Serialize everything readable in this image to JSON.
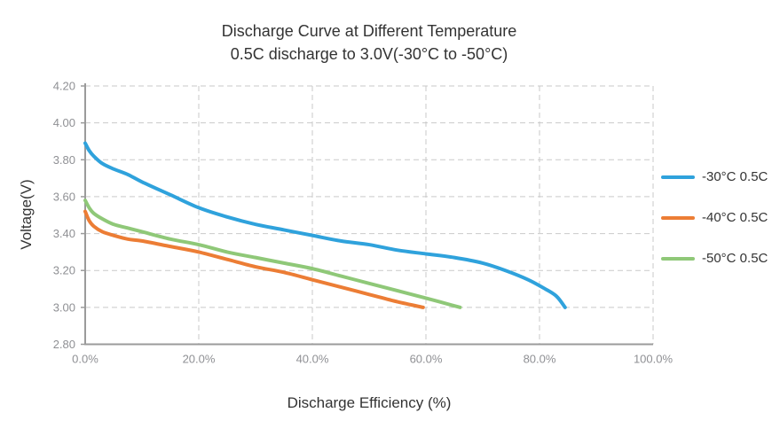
{
  "chart_data": {
    "type": "line",
    "title": "Discharge Curve at Different Temperature",
    "subtitle": "0.5C discharge to 3.0V(-30°C to -50°C)",
    "xlabel": "Discharge Efficiency (%)",
    "ylabel": "Voltage(V)",
    "xlim": [
      0,
      100
    ],
    "ylim": [
      2.8,
      4.2
    ],
    "grid": "dashed",
    "legend_position": "right",
    "axis_color": "#9b9b9b",
    "grid_color": "#c9c9c9",
    "tick_label_color": "#8f9094",
    "text_color": "#333333",
    "x_ticks": [
      {
        "value": 0,
        "label": "0.0%"
      },
      {
        "value": 20,
        "label": "20.0%"
      },
      {
        "value": 40,
        "label": "40.0%"
      },
      {
        "value": 60,
        "label": "60.0%"
      },
      {
        "value": 80,
        "label": "80.0%"
      },
      {
        "value": 100,
        "label": "100.0%"
      }
    ],
    "y_ticks": [
      {
        "value": 2.8,
        "label": "2.80"
      },
      {
        "value": 3.0,
        "label": "3.00"
      },
      {
        "value": 3.2,
        "label": "3.20"
      },
      {
        "value": 3.4,
        "label": "3.40"
      },
      {
        "value": 3.6,
        "label": "3.60"
      },
      {
        "value": 3.8,
        "label": "3.80"
      },
      {
        "value": 4.0,
        "label": "4.00"
      },
      {
        "value": 4.2,
        "label": "4.20"
      }
    ],
    "series": [
      {
        "name": "-30°C 0.5C",
        "color": "#2fa2dc",
        "points": [
          [
            0,
            3.89
          ],
          [
            0.7,
            3.85
          ],
          [
            1.5,
            3.82
          ],
          [
            3,
            3.78
          ],
          [
            5,
            3.75
          ],
          [
            7.5,
            3.72
          ],
          [
            10,
            3.68
          ],
          [
            15,
            3.61
          ],
          [
            20,
            3.54
          ],
          [
            25,
            3.49
          ],
          [
            30,
            3.45
          ],
          [
            35,
            3.42
          ],
          [
            40,
            3.39
          ],
          [
            45,
            3.36
          ],
          [
            50,
            3.34
          ],
          [
            55,
            3.31
          ],
          [
            60,
            3.29
          ],
          [
            65,
            3.27
          ],
          [
            70,
            3.24
          ],
          [
            74,
            3.2
          ],
          [
            78,
            3.15
          ],
          [
            81,
            3.1
          ],
          [
            83,
            3.06
          ],
          [
            84.5,
            3.0
          ]
        ]
      },
      {
        "name": "-40°C 0.5C",
        "color": "#ec7d35",
        "points": [
          [
            0,
            3.52
          ],
          [
            0.7,
            3.47
          ],
          [
            1.5,
            3.44
          ],
          [
            3,
            3.41
          ],
          [
            5,
            3.39
          ],
          [
            7.5,
            3.37
          ],
          [
            10,
            3.36
          ],
          [
            15,
            3.33
          ],
          [
            20,
            3.3
          ],
          [
            25,
            3.26
          ],
          [
            30,
            3.22
          ],
          [
            35,
            3.19
          ],
          [
            40,
            3.15
          ],
          [
            45,
            3.11
          ],
          [
            50,
            3.07
          ],
          [
            55,
            3.03
          ],
          [
            59.5,
            3.0
          ]
        ]
      },
      {
        "name": "-50°C 0.5C",
        "color": "#8fc878",
        "points": [
          [
            0,
            3.58
          ],
          [
            0.7,
            3.54
          ],
          [
            1.5,
            3.51
          ],
          [
            3,
            3.48
          ],
          [
            5,
            3.45
          ],
          [
            7.5,
            3.43
          ],
          [
            10,
            3.41
          ],
          [
            15,
            3.37
          ],
          [
            20,
            3.34
          ],
          [
            25,
            3.3
          ],
          [
            30,
            3.27
          ],
          [
            35,
            3.24
          ],
          [
            40,
            3.21
          ],
          [
            45,
            3.17
          ],
          [
            50,
            3.13
          ],
          [
            55,
            3.09
          ],
          [
            60,
            3.05
          ],
          [
            66,
            3.0
          ]
        ]
      }
    ]
  }
}
